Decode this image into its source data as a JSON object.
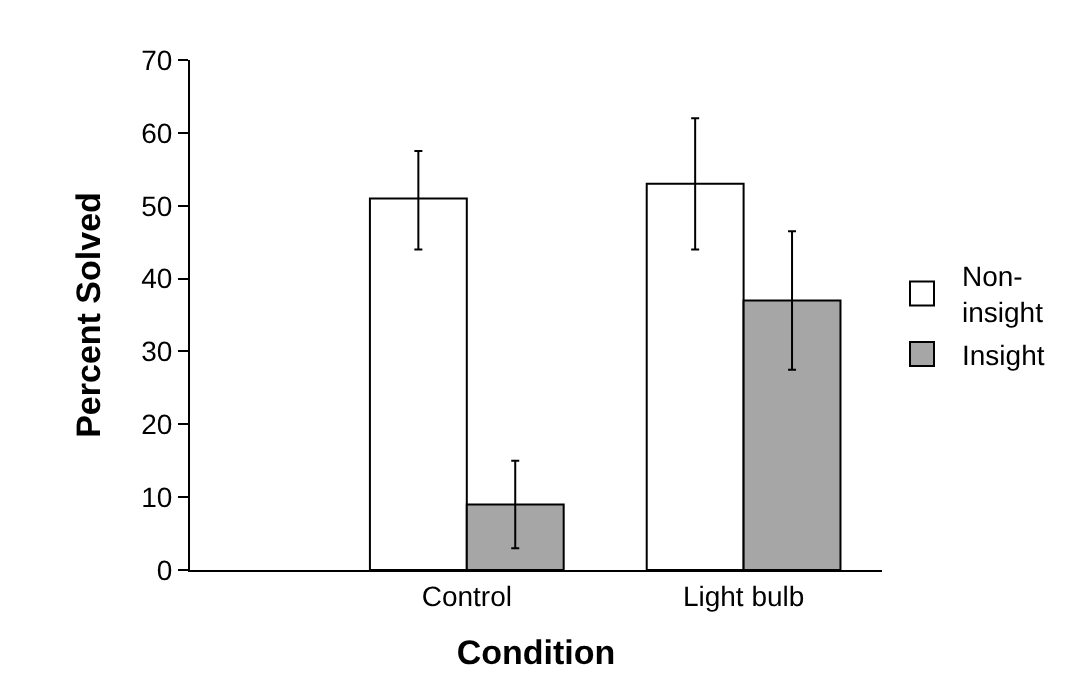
{
  "chart_data": {
    "type": "bar",
    "xlabel": "Condition",
    "ylabel": "Percent Solved",
    "categories": [
      "Control",
      "Light bulb"
    ],
    "series": [
      {
        "name": "Non-insight",
        "color": "#ffffff",
        "values": [
          51,
          53
        ],
        "errors": [
          [
            44,
            57.5
          ],
          [
            44,
            62
          ]
        ]
      },
      {
        "name": "Insight",
        "color": "#a6a6a6",
        "values": [
          9,
          37
        ],
        "errors": [
          [
            3,
            15
          ],
          [
            27.5,
            46.5
          ]
        ]
      }
    ],
    "ylim": [
      0,
      70
    ],
    "yticks": [
      0,
      10,
      20,
      30,
      40,
      50,
      60,
      70
    ],
    "legend": "right"
  }
}
